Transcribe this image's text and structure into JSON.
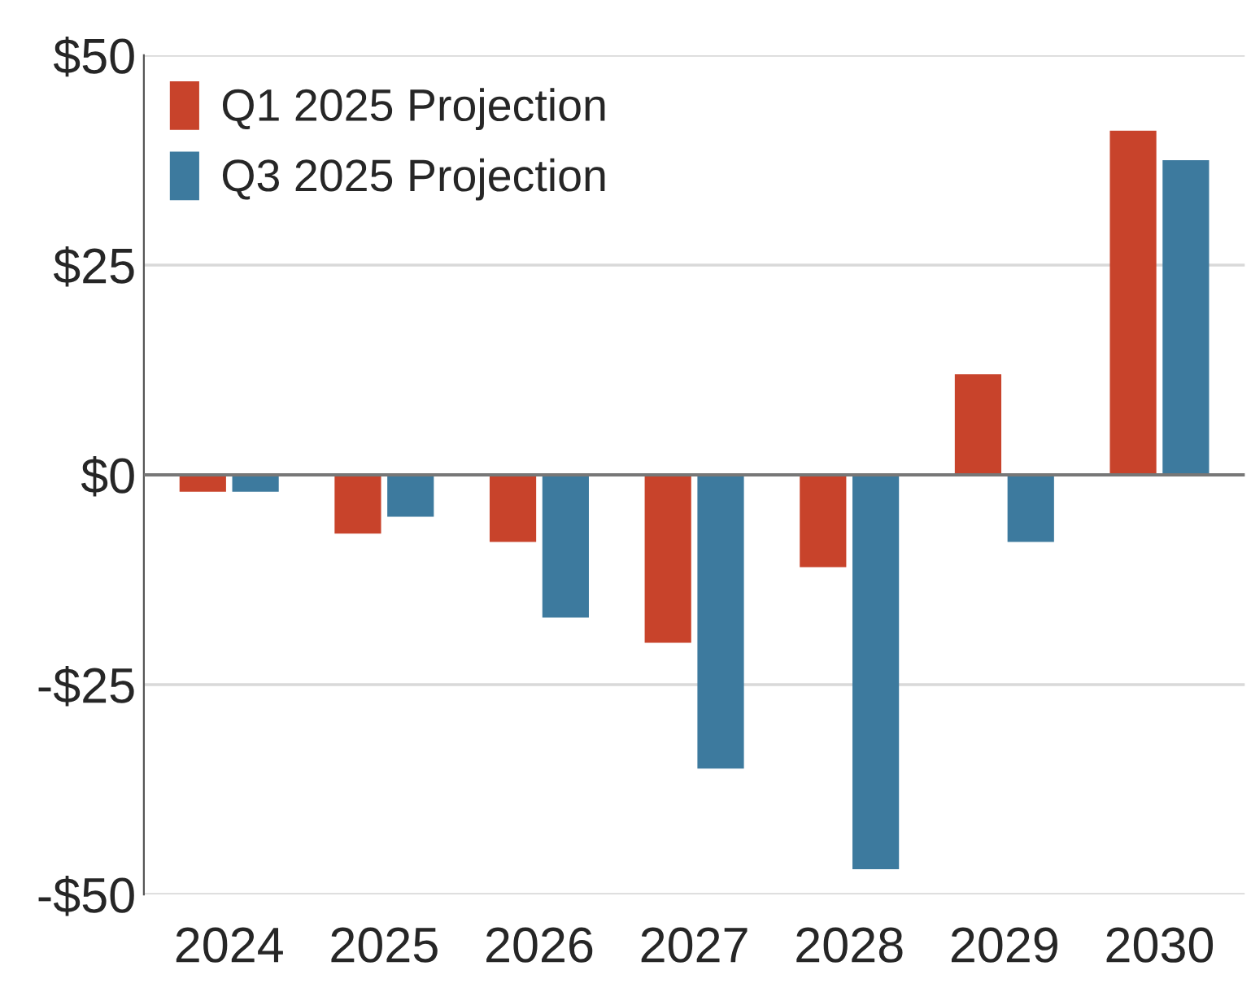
{
  "chart_data": {
    "type": "bar",
    "categories": [
      "2024",
      "2025",
      "2026",
      "2027",
      "2028",
      "2029",
      "2030"
    ],
    "series": [
      {
        "name": "Q1 2025 Projection",
        "color": "#c8432b",
        "values": [
          -2,
          -7,
          -8,
          -20,
          -11,
          12,
          41
        ]
      },
      {
        "name": "Q3 2025 Projection",
        "color": "#3d7a9e",
        "values": [
          -2,
          -5,
          -17,
          -35,
          -47,
          -8,
          37.5
        ]
      }
    ],
    "ylim": [
      -50,
      50
    ],
    "yticks": [
      {
        "value": -50,
        "label": "-$50"
      },
      {
        "value": -25,
        "label": "-$25"
      },
      {
        "value": 0,
        "label": "$0"
      },
      {
        "value": 25,
        "label": "$25"
      },
      {
        "value": 50,
        "label": "$50"
      }
    ],
    "ref_lines": [
      {
        "axis": "y",
        "value": 0,
        "color": "#777777"
      }
    ],
    "grid": "y",
    "legend": "top left"
  }
}
